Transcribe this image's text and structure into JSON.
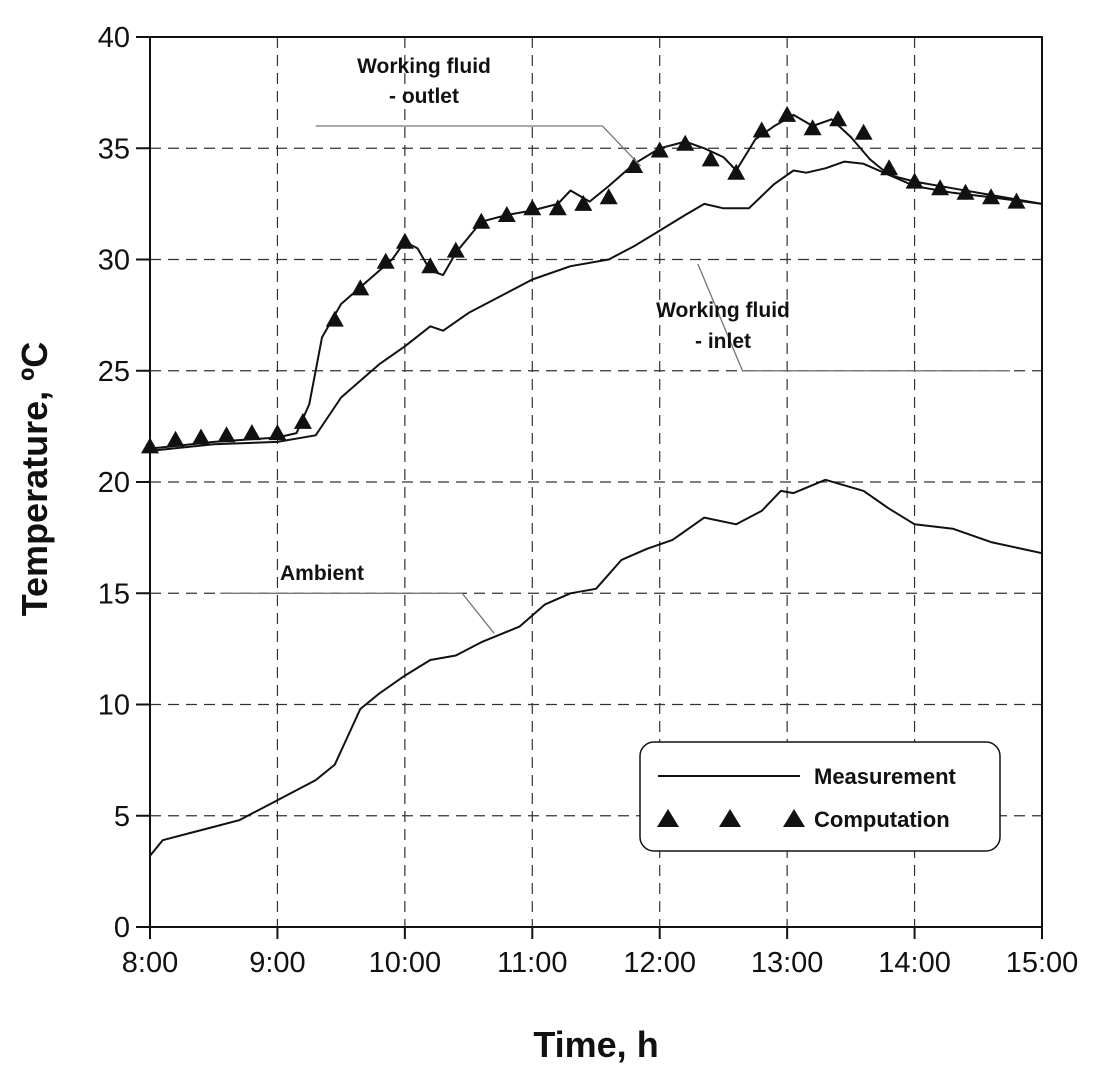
{
  "chart_data": {
    "type": "line",
    "xlabel": "Time, h",
    "ylabel": "Temperature, ºC",
    "x_unit": "hours of day",
    "xlim": [
      8,
      15
    ],
    "ylim": [
      0,
      40
    ],
    "x_ticks": [
      8,
      9,
      10,
      11,
      12,
      13,
      14,
      15
    ],
    "x_tick_labels": [
      "8:00",
      "9:00",
      "10:00",
      "11:00",
      "12:00",
      "13:00",
      "14:00",
      "15:00"
    ],
    "y_ticks": [
      0,
      5,
      10,
      15,
      20,
      25,
      30,
      35,
      40
    ],
    "y_tick_labels": [
      "0",
      "5",
      "10",
      "15",
      "20",
      "25",
      "30",
      "35",
      "40"
    ],
    "grid": true,
    "legend": {
      "placement": "bottom-right",
      "items": [
        {
          "label": "Measurement",
          "marker": "line"
        },
        {
          "label": "Computation",
          "marker": "triangle"
        }
      ]
    },
    "annotations": [
      {
        "lines": [
          "Working fluid",
          "- outlet"
        ]
      },
      {
        "lines": [
          "Working fluid",
          "- inlet"
        ]
      },
      {
        "lines": [
          "Ambient"
        ]
      }
    ],
    "series": [
      {
        "kind": "measurement",
        "x": [
          8.0,
          8.5,
          9.0,
          9.15,
          9.25,
          9.35,
          9.5,
          9.7,
          9.9,
          10.0,
          10.1,
          10.2,
          10.3,
          10.4,
          10.5,
          10.6,
          10.8,
          11.0,
          11.2,
          11.3,
          11.45,
          11.6,
          11.8,
          12.0,
          12.2,
          12.35,
          12.5,
          12.6,
          12.75,
          12.9,
          13.05,
          13.2,
          13.35,
          13.5,
          13.65,
          13.8,
          14.0,
          14.3,
          14.6,
          15.0
        ],
        "values": [
          21.5,
          21.8,
          22.0,
          22.2,
          23.5,
          26.5,
          28.0,
          29.0,
          30.0,
          30.8,
          30.5,
          29.5,
          29.3,
          30.3,
          31.0,
          31.7,
          32.0,
          32.2,
          32.5,
          33.1,
          32.6,
          33.3,
          34.3,
          35.0,
          35.3,
          35.0,
          34.6,
          34.0,
          35.4,
          36.0,
          36.5,
          36.0,
          36.3,
          35.5,
          34.5,
          33.8,
          33.5,
          33.2,
          32.9,
          32.5
        ]
      },
      {
        "kind": "measurement",
        "x": [
          8.0,
          8.5,
          9.0,
          9.3,
          9.5,
          9.8,
          10.0,
          10.2,
          10.3,
          10.5,
          10.8,
          11.0,
          11.3,
          11.6,
          11.8,
          12.0,
          12.2,
          12.35,
          12.5,
          12.7,
          12.9,
          13.05,
          13.15,
          13.3,
          13.45,
          13.6,
          13.8,
          14.0,
          14.3,
          14.6,
          15.0
        ],
        "values": [
          21.4,
          21.7,
          21.8,
          22.1,
          23.8,
          25.3,
          26.1,
          27.0,
          26.8,
          27.6,
          28.5,
          29.1,
          29.7,
          30.0,
          30.6,
          31.3,
          32.0,
          32.5,
          32.3,
          32.3,
          33.4,
          34.0,
          33.9,
          34.1,
          34.4,
          34.3,
          33.8,
          33.3,
          33.0,
          32.8,
          32.5
        ]
      },
      {
        "kind": "measurement",
        "x": [
          8.0,
          8.1,
          8.3,
          8.5,
          8.7,
          9.0,
          9.3,
          9.45,
          9.65,
          9.8,
          10.0,
          10.2,
          10.4,
          10.6,
          10.9,
          11.1,
          11.3,
          11.5,
          11.7,
          11.9,
          12.1,
          12.35,
          12.6,
          12.8,
          12.95,
          13.05,
          13.3,
          13.6,
          13.8,
          14.0,
          14.3,
          14.6,
          15.0
        ],
        "values": [
          3.2,
          3.9,
          4.2,
          4.5,
          4.8,
          5.7,
          6.6,
          7.3,
          9.8,
          10.5,
          11.3,
          12.0,
          12.2,
          12.8,
          13.5,
          14.5,
          15.0,
          15.2,
          16.5,
          17.0,
          17.4,
          18.4,
          18.1,
          18.7,
          19.6,
          19.5,
          20.1,
          19.6,
          18.8,
          18.1,
          17.9,
          17.3,
          16.8
        ]
      },
      {
        "kind": "computation",
        "marker": "triangle",
        "x": [
          8.0,
          8.2,
          8.4,
          8.6,
          8.8,
          9.0,
          9.2,
          9.45,
          9.65,
          9.85,
          10.0,
          10.2,
          10.4,
          10.6,
          10.8,
          11.0,
          11.2,
          11.4,
          11.6,
          11.8,
          12.0,
          12.2,
          12.4,
          12.6,
          12.8,
          13.0,
          13.2,
          13.4,
          13.6,
          13.8,
          14.0,
          14.2,
          14.4,
          14.6,
          14.8
        ],
        "values": [
          21.6,
          21.9,
          22.0,
          22.1,
          22.2,
          22.2,
          22.7,
          27.3,
          28.7,
          29.9,
          30.8,
          29.7,
          30.4,
          31.7,
          32.0,
          32.3,
          32.3,
          32.5,
          32.8,
          34.2,
          34.9,
          35.2,
          34.5,
          33.9,
          35.8,
          36.5,
          35.9,
          36.3,
          35.7,
          34.1,
          33.5,
          33.2,
          33.0,
          32.8,
          32.6
        ]
      }
    ]
  }
}
